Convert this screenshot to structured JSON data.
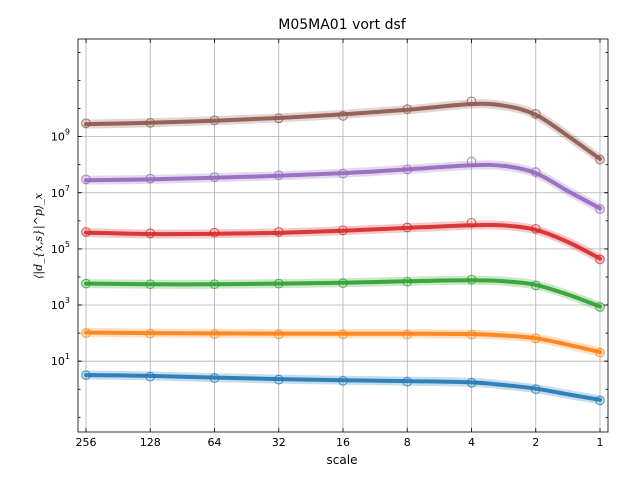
{
  "chart_data": {
    "type": "line",
    "title": "M05MA01 vort dsf",
    "xlabel": "scale",
    "ylabel": "⟨|d_{x,s}|^p⟩_x",
    "x_scale": "log2",
    "x_direction": "descending",
    "y_scale": "log10",
    "xlim": [
      256,
      1
    ],
    "ylim": [
      0.03,
      3000000000000
    ],
    "x_ticks": [
      256,
      128,
      64,
      32,
      16,
      8,
      4,
      2,
      1
    ],
    "x_tick_labels": [
      "256",
      "128",
      "64",
      "32",
      "16",
      "8",
      "4",
      "2",
      "1"
    ],
    "y_ticks": [
      10,
      1000,
      100000,
      10000000,
      1000000000
    ],
    "y_tick_labels": [
      {
        "base": "10",
        "exp": "1"
      },
      {
        "base": "10",
        "exp": "3"
      },
      {
        "base": "10",
        "exp": "5"
      },
      {
        "base": "10",
        "exp": "7"
      },
      {
        "base": "10",
        "exp": "9"
      }
    ],
    "grid": true,
    "series": [
      {
        "color": "#1f77b4",
        "points": [
          [
            256,
            3.2
          ],
          [
            128,
            2.8
          ],
          [
            64,
            2.5
          ],
          [
            32,
            2.2
          ],
          [
            16,
            2.0
          ],
          [
            8,
            1.85
          ],
          [
            4,
            1.7
          ],
          [
            2,
            1.0
          ],
          [
            1,
            0.4
          ]
        ],
        "curve": [
          [
            256,
            3.2
          ],
          [
            128,
            3.0
          ],
          [
            64,
            2.6
          ],
          [
            32,
            2.3
          ],
          [
            16,
            2.1
          ],
          [
            8,
            1.95
          ],
          [
            4,
            1.75
          ],
          [
            2.8,
            1.4
          ],
          [
            2,
            1.05
          ],
          [
            1.4,
            0.65
          ],
          [
            1,
            0.42
          ]
        ]
      },
      {
        "color": "#ff7f0e",
        "points": [
          [
            256,
            100
          ],
          [
            128,
            95
          ],
          [
            64,
            92
          ],
          [
            32,
            90
          ],
          [
            16,
            90
          ],
          [
            8,
            88
          ],
          [
            4,
            88
          ],
          [
            2,
            65
          ],
          [
            1,
            20
          ]
        ],
        "curve": [
          [
            256,
            105
          ],
          [
            128,
            100
          ],
          [
            64,
            98
          ],
          [
            32,
            96
          ],
          [
            16,
            95
          ],
          [
            8,
            95
          ],
          [
            4,
            92
          ],
          [
            2.8,
            82
          ],
          [
            2,
            66
          ],
          [
            1.4,
            38
          ],
          [
            1,
            21
          ]
        ]
      },
      {
        "color": "#2ca02c",
        "points": [
          [
            256,
            5800
          ],
          [
            128,
            5500
          ],
          [
            64,
            5500
          ],
          [
            32,
            5800
          ],
          [
            16,
            6000
          ],
          [
            8,
            6800
          ],
          [
            4,
            8000
          ],
          [
            2,
            5000
          ],
          [
            1,
            850
          ]
        ],
        "curve": [
          [
            256,
            5800
          ],
          [
            128,
            5500
          ],
          [
            64,
            5500
          ],
          [
            32,
            5800
          ],
          [
            16,
            6200
          ],
          [
            8,
            7000
          ],
          [
            4,
            7600
          ],
          [
            2.8,
            7000
          ],
          [
            2,
            5200
          ],
          [
            1.4,
            2300
          ],
          [
            1,
            880
          ]
        ]
      },
      {
        "color": "#d62728",
        "points": [
          [
            256,
            400000
          ],
          [
            128,
            360000
          ],
          [
            64,
            380000
          ],
          [
            32,
            400000
          ],
          [
            16,
            460000
          ],
          [
            8,
            580000
          ],
          [
            4,
            850000
          ],
          [
            2,
            520000
          ],
          [
            1,
            42000
          ]
        ],
        "curve": [
          [
            256,
            380000
          ],
          [
            128,
            340000
          ],
          [
            64,
            345000
          ],
          [
            32,
            370000
          ],
          [
            16,
            440000
          ],
          [
            8,
            560000
          ],
          [
            4,
            700000
          ],
          [
            2.8,
            680000
          ],
          [
            2,
            480000
          ],
          [
            1.4,
            170000
          ],
          [
            1,
            45000
          ]
        ]
      },
      {
        "color": "#9467bd",
        "points": [
          [
            256,
            30000000
          ],
          [
            128,
            32000000
          ],
          [
            64,
            36000000
          ],
          [
            32,
            42000000
          ],
          [
            16,
            48000000
          ],
          [
            8,
            68000000
          ],
          [
            4,
            130000000
          ],
          [
            2,
            55000000
          ],
          [
            1,
            2600000
          ]
        ],
        "curve": [
          [
            256,
            28000000
          ],
          [
            128,
            30000000
          ],
          [
            64,
            34000000
          ],
          [
            32,
            40000000
          ],
          [
            16,
            50000000
          ],
          [
            8,
            68000000
          ],
          [
            4,
            95000000
          ],
          [
            2.8,
            90000000
          ],
          [
            2,
            50000000
          ],
          [
            1.4,
            11000000
          ],
          [
            1,
            2800000
          ]
        ]
      },
      {
        "color": "#8c564b",
        "points": [
          [
            256,
            3000000000
          ],
          [
            128,
            3100000000
          ],
          [
            64,
            3800000000
          ],
          [
            32,
            4500000000
          ],
          [
            16,
            5500000000
          ],
          [
            8,
            9500000000
          ],
          [
            4,
            18000000000
          ],
          [
            2,
            6500000000
          ],
          [
            1,
            150000000
          ]
        ],
        "curve": [
          [
            256,
            2800000000
          ],
          [
            128,
            3100000000
          ],
          [
            64,
            3700000000
          ],
          [
            32,
            4600000000
          ],
          [
            16,
            6200000000
          ],
          [
            8,
            9000000000
          ],
          [
            4,
            14500000000
          ],
          [
            2.8,
            12500000000
          ],
          [
            2,
            6000000000
          ],
          [
            1.4,
            1000000000
          ],
          [
            1,
            160000000
          ]
        ]
      }
    ]
  }
}
